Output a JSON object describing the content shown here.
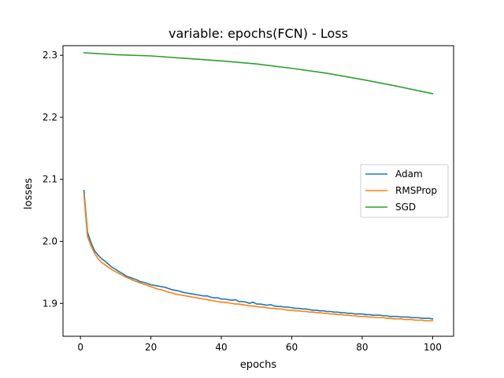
{
  "chart_data": {
    "type": "line",
    "title": "variable: epochs(FCN) - Loss",
    "xlabel": "epochs",
    "ylabel": "losses",
    "xlim": [
      -4.95,
      105.95
    ],
    "ylim": [
      1.847,
      2.3155
    ],
    "xticks": [
      0,
      20,
      40,
      60,
      80,
      100
    ],
    "yticks": [
      1.9,
      2.0,
      2.1,
      2.2,
      2.3
    ],
    "ytick_labels": [
      "1.9",
      "2.0",
      "2.1",
      "2.2",
      "2.3"
    ],
    "grid": false,
    "legend_position": "center-right",
    "series": [
      {
        "name": "Adam",
        "color": "#1f77b4",
        "x": [
          1,
          2,
          3,
          4,
          5,
          6,
          7,
          8,
          9,
          10,
          11,
          12,
          13,
          14,
          15,
          16,
          17,
          18,
          19,
          20,
          21,
          22,
          23,
          24,
          25,
          26,
          27,
          28,
          29,
          30,
          31,
          32,
          33,
          34,
          35,
          36,
          37,
          38,
          39,
          40,
          41,
          42,
          43,
          44,
          45,
          46,
          47,
          48,
          49,
          50,
          51,
          52,
          53,
          54,
          55,
          56,
          57,
          58,
          59,
          60,
          61,
          62,
          63,
          64,
          65,
          66,
          67,
          68,
          69,
          70,
          71,
          72,
          73,
          74,
          75,
          76,
          77,
          78,
          79,
          80,
          81,
          82,
          83,
          84,
          85,
          86,
          87,
          88,
          89,
          90,
          91,
          92,
          93,
          94,
          95,
          96,
          97,
          98,
          99,
          100
        ],
        "values": [
          2.082,
          2.015,
          1.998,
          1.985,
          1.978,
          1.972,
          1.968,
          1.963,
          1.958,
          1.955,
          1.951,
          1.948,
          1.944,
          1.942,
          1.94,
          1.938,
          1.935,
          1.934,
          1.932,
          1.93,
          1.929,
          1.928,
          1.927,
          1.926,
          1.924,
          1.922,
          1.921,
          1.92,
          1.918,
          1.917,
          1.916,
          1.915,
          1.914,
          1.913,
          1.912,
          1.912,
          1.91,
          1.909,
          1.909,
          1.907,
          1.907,
          1.906,
          1.905,
          1.906,
          1.903,
          1.903,
          1.902,
          1.9,
          1.902,
          1.899,
          1.899,
          1.898,
          1.897,
          1.898,
          1.896,
          1.895,
          1.895,
          1.894,
          1.894,
          1.893,
          1.892,
          1.892,
          1.891,
          1.891,
          1.89,
          1.889,
          1.889,
          1.888,
          1.888,
          1.887,
          1.887,
          1.886,
          1.886,
          1.885,
          1.885,
          1.884,
          1.884,
          1.883,
          1.883,
          1.883,
          1.882,
          1.882,
          1.881,
          1.881,
          1.881,
          1.88,
          1.88,
          1.879,
          1.879,
          1.879,
          1.878,
          1.878,
          1.878,
          1.877,
          1.877,
          1.877,
          1.876,
          1.876,
          1.876,
          1.875
        ]
      },
      {
        "name": "RMSProp",
        "color": "#ff7f0e",
        "x": [
          1,
          2,
          3,
          4,
          5,
          6,
          7,
          8,
          9,
          10,
          11,
          12,
          13,
          14,
          15,
          16,
          17,
          18,
          19,
          20,
          21,
          22,
          23,
          24,
          25,
          26,
          27,
          28,
          29,
          30,
          31,
          32,
          33,
          34,
          35,
          36,
          37,
          38,
          39,
          40,
          41,
          42,
          43,
          44,
          45,
          46,
          47,
          48,
          49,
          50,
          51,
          52,
          53,
          54,
          55,
          56,
          57,
          58,
          59,
          60,
          61,
          62,
          63,
          64,
          65,
          66,
          67,
          68,
          69,
          70,
          71,
          72,
          73,
          74,
          75,
          76,
          77,
          78,
          79,
          80,
          81,
          82,
          83,
          84,
          85,
          86,
          87,
          88,
          89,
          90,
          91,
          92,
          93,
          94,
          95,
          96,
          97,
          98,
          99,
          100
        ],
        "values": [
          2.075,
          2.008,
          1.993,
          1.981,
          1.972,
          1.966,
          1.962,
          1.958,
          1.954,
          1.951,
          1.948,
          1.945,
          1.942,
          1.94,
          1.937,
          1.935,
          1.933,
          1.931,
          1.929,
          1.927,
          1.925,
          1.923,
          1.922,
          1.92,
          1.918,
          1.917,
          1.915,
          1.914,
          1.913,
          1.912,
          1.911,
          1.91,
          1.909,
          1.908,
          1.907,
          1.906,
          1.905,
          1.904,
          1.903,
          1.902,
          1.902,
          1.901,
          1.9,
          1.899,
          1.899,
          1.898,
          1.897,
          1.896,
          1.896,
          1.895,
          1.894,
          1.894,
          1.893,
          1.892,
          1.892,
          1.891,
          1.891,
          1.89,
          1.889,
          1.889,
          1.888,
          1.888,
          1.887,
          1.887,
          1.886,
          1.886,
          1.885,
          1.885,
          1.884,
          1.884,
          1.883,
          1.883,
          1.882,
          1.882,
          1.881,
          1.881,
          1.88,
          1.88,
          1.879,
          1.879,
          1.879,
          1.878,
          1.878,
          1.877,
          1.877,
          1.877,
          1.876,
          1.876,
          1.875,
          1.875,
          1.875,
          1.874,
          1.874,
          1.874,
          1.873,
          1.873,
          1.873,
          1.872,
          1.872,
          1.872
        ]
      },
      {
        "name": "SGD",
        "color": "#2ca02c",
        "x": [
          1,
          10,
          20,
          30,
          40,
          50,
          60,
          70,
          80,
          90,
          100
        ],
        "values": [
          2.304,
          2.301,
          2.299,
          2.295,
          2.291,
          2.286,
          2.279,
          2.271,
          2.261,
          2.25,
          2.238
        ]
      }
    ]
  }
}
